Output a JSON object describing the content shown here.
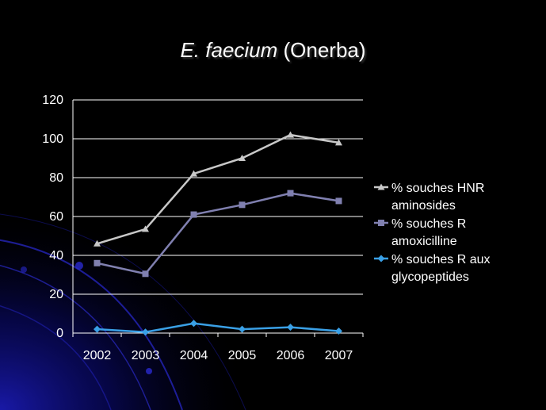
{
  "slide": {
    "title_italic": "E. faecium",
    "title_rest": "(Onerba)"
  },
  "chart_data": {
    "type": "line",
    "title": "E. faecium (Onerba)",
    "xlabel": "",
    "ylabel": "",
    "categories": [
      "2002",
      "2003",
      "2004",
      "2005",
      "2006",
      "2007"
    ],
    "ylim": [
      0,
      120
    ],
    "yticks": [
      0,
      20,
      40,
      60,
      80,
      100,
      120
    ],
    "grid": "horizontal",
    "legend_position": "right",
    "series": [
      {
        "name": "% souches HNR aminosides",
        "legend_lines": [
          "% souches HNR",
          "aminosides"
        ],
        "marker": "triangle",
        "color": "#c8c8c8",
        "values": [
          46,
          53.5,
          82,
          90,
          102,
          98
        ]
      },
      {
        "name": "% souches R amoxicilline",
        "legend_lines": [
          "% souches R",
          "amoxicilline"
        ],
        "marker": "square",
        "color": "#8080b0",
        "values": [
          36,
          30.5,
          61,
          66,
          72,
          68
        ]
      },
      {
        "name": "% souches R aux glycopeptides",
        "legend_lines": [
          "% souches R aux",
          "glycopeptides"
        ],
        "marker": "diamond",
        "color": "#3aa0e6",
        "values": [
          2,
          0.5,
          5,
          2,
          3,
          1
        ]
      }
    ]
  }
}
